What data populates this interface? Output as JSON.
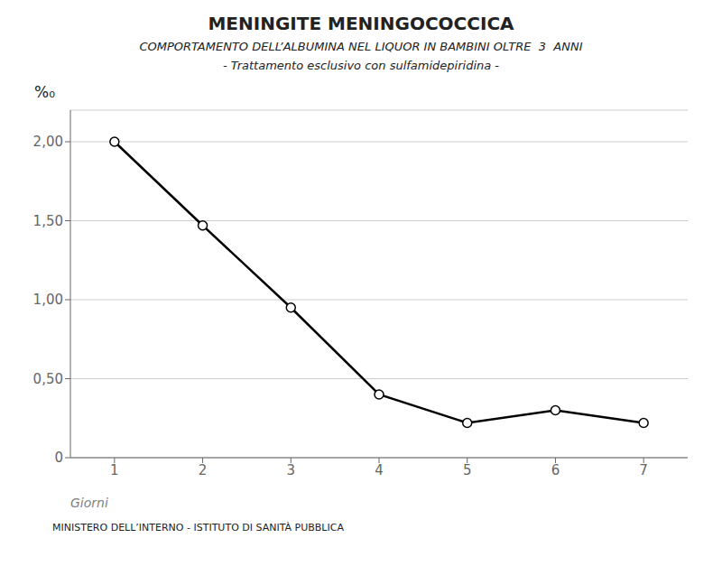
{
  "chart_data": {
    "type": "line",
    "title": "MENINGITE MENINGOCOCCICA",
    "subtitle": [
      "COMPORTAMENTO DELL’ALBUMINA NEL LIQUOR IN BAMBINI OLTRE  3  ANNI",
      "- Trattamento esclusivo con sulfamidepiridina -"
    ],
    "footer": "MINISTERO DELL’INTERNO - ISTITUTO DI SANITÀ PUBBLICA",
    "ylabel": "%₀",
    "xlabel": "Giorni",
    "x": [
      1,
      2,
      3,
      4,
      5,
      6,
      7
    ],
    "values": [
      2.0,
      1.47,
      0.95,
      0.4,
      0.22,
      0.3,
      0.22
    ],
    "color": "#000000",
    "marker": "circle",
    "xlim": [
      0.5,
      7.5
    ],
    "xticks": [
      1,
      2,
      3,
      4,
      5,
      6,
      7
    ],
    "ylim": [
      0,
      2.2
    ],
    "yticks": [
      0,
      {
        "value": 0.5,
        "label": "0,50"
      },
      {
        "value": 1,
        "label": "1,00"
      },
      {
        "value": 1.5,
        "label": "1,50"
      },
      {
        "value": 2,
        "label": "2,00"
      }
    ],
    "grid": "y"
  }
}
